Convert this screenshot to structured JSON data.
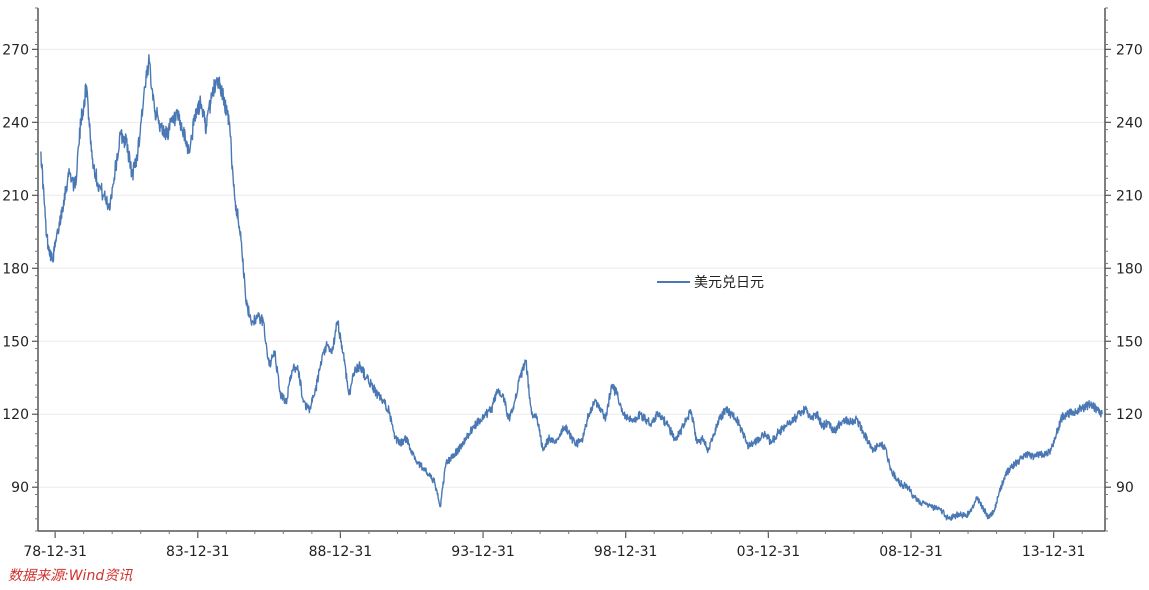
{
  "chart_data": {
    "type": "line",
    "title": "",
    "xlabel": "",
    "ylabel": "",
    "x_tick_labels": [
      "78-12-31",
      "83-12-31",
      "88-12-31",
      "93-12-31",
      "98-12-31",
      "03-12-31",
      "08-12-31",
      "13-12-31"
    ],
    "y_ticks": [
      90,
      120,
      150,
      180,
      210,
      240,
      270
    ],
    "ylim": [
      72,
      287
    ],
    "xlim": [
      1978.4,
      2015.8
    ],
    "grid": true,
    "legend_position": "center",
    "series": [
      {
        "name": "美元兑日元",
        "color": "#4a78b4",
        "x": [
          1978.5,
          1978.7,
          1978.9,
          1979.1,
          1979.3,
          1979.5,
          1979.7,
          1979.9,
          1980.1,
          1980.3,
          1980.5,
          1980.7,
          1980.9,
          1981.1,
          1981.3,
          1981.5,
          1981.7,
          1981.9,
          1982.1,
          1982.3,
          1982.5,
          1982.7,
          1982.9,
          1983.1,
          1983.3,
          1983.5,
          1983.7,
          1983.9,
          1984.1,
          1984.3,
          1984.5,
          1984.7,
          1984.9,
          1985.1,
          1985.3,
          1985.5,
          1985.7,
          1985.9,
          1986.1,
          1986.3,
          1986.5,
          1986.7,
          1986.9,
          1987.1,
          1987.3,
          1987.5,
          1987.7,
          1987.9,
          1988.1,
          1988.3,
          1988.5,
          1988.7,
          1988.9,
          1989.1,
          1989.3,
          1989.5,
          1989.7,
          1989.9,
          1990.1,
          1990.3,
          1990.5,
          1990.7,
          1990.9,
          1991.1,
          1991.3,
          1991.5,
          1991.7,
          1991.9,
          1992.1,
          1992.3,
          1992.5,
          1992.7,
          1992.9,
          1993.1,
          1993.3,
          1993.5,
          1993.7,
          1993.9,
          1994.1,
          1994.3,
          1994.5,
          1994.7,
          1994.9,
          1995.1,
          1995.3,
          1995.5,
          1995.7,
          1995.9,
          1996.1,
          1996.3,
          1996.5,
          1996.7,
          1996.9,
          1997.1,
          1997.3,
          1997.5,
          1997.7,
          1997.9,
          1998.1,
          1998.3,
          1998.5,
          1998.7,
          1998.9,
          1999.1,
          1999.3,
          1999.5,
          1999.7,
          1999.9,
          2000.1,
          2000.3,
          2000.5,
          2000.7,
          2000.9,
          2001.1,
          2001.3,
          2001.5,
          2001.7,
          2001.9,
          2002.1,
          2002.3,
          2002.5,
          2002.7,
          2002.9,
          2003.1,
          2003.3,
          2003.5,
          2003.7,
          2003.9,
          2004.1,
          2004.3,
          2004.5,
          2004.7,
          2004.9,
          2005.1,
          2005.3,
          2005.5,
          2005.7,
          2005.9,
          2006.1,
          2006.3,
          2006.5,
          2006.7,
          2006.9,
          2007.1,
          2007.3,
          2007.5,
          2007.7,
          2007.9,
          2008.1,
          2008.3,
          2008.5,
          2008.7,
          2008.9,
          2009.1,
          2009.3,
          2009.5,
          2009.7,
          2009.9,
          2010.1,
          2010.3,
          2010.5,
          2010.7,
          2010.9,
          2011.1,
          2011.3,
          2011.5,
          2011.7,
          2011.9,
          2012.1,
          2012.3,
          2012.5,
          2012.7,
          2012.9,
          2013.1,
          2013.3,
          2013.5,
          2013.7,
          2013.9,
          2014.1,
          2014.3,
          2014.5,
          2014.7,
          2014.9,
          2015.1,
          2015.3,
          2015.5,
          2015.7
        ],
        "y": [
          228,
          193,
          183,
          195,
          208,
          220,
          213,
          240,
          255,
          225,
          215,
          210,
          205,
          220,
          235,
          232,
          218,
          228,
          250,
          265,
          245,
          238,
          235,
          240,
          242,
          235,
          228,
          242,
          248,
          238,
          252,
          258,
          250,
          240,
          208,
          195,
          165,
          158,
          160,
          158,
          140,
          145,
          128,
          125,
          138,
          140,
          125,
          122,
          128,
          140,
          148,
          145,
          158,
          145,
          128,
          138,
          140,
          135,
          132,
          128,
          125,
          122,
          110,
          108,
          110,
          105,
          100,
          98,
          95,
          92,
          82,
          100,
          102,
          105,
          108,
          112,
          115,
          118,
          120,
          122,
          130,
          128,
          118,
          125,
          135,
          142,
          120,
          118,
          105,
          110,
          108,
          112,
          115,
          110,
          108,
          110,
          120,
          125,
          122,
          118,
          132,
          128,
          120,
          118,
          117,
          120,
          118,
          116,
          120,
          118,
          115,
          110,
          112,
          118,
          121,
          108,
          110,
          105,
          112,
          118,
          122,
          120,
          118,
          112,
          107,
          108,
          110,
          112,
          108,
          112,
          114,
          116,
          118,
          120,
          122,
          118,
          120,
          115,
          117,
          113,
          116,
          118,
          117,
          118,
          113,
          109,
          105,
          108,
          106,
          97,
          93,
          91,
          90,
          86,
          84,
          83,
          82,
          81,
          80,
          77,
          78,
          79,
          78,
          80,
          86,
          82,
          78,
          80,
          88,
          95,
          98,
          100,
          102,
          104,
          102,
          104,
          103,
          105,
          112,
          119,
          120,
          121,
          122,
          123,
          124,
          122,
          120
        ]
      }
    ]
  },
  "source_note": "数据来源:Wind资讯"
}
